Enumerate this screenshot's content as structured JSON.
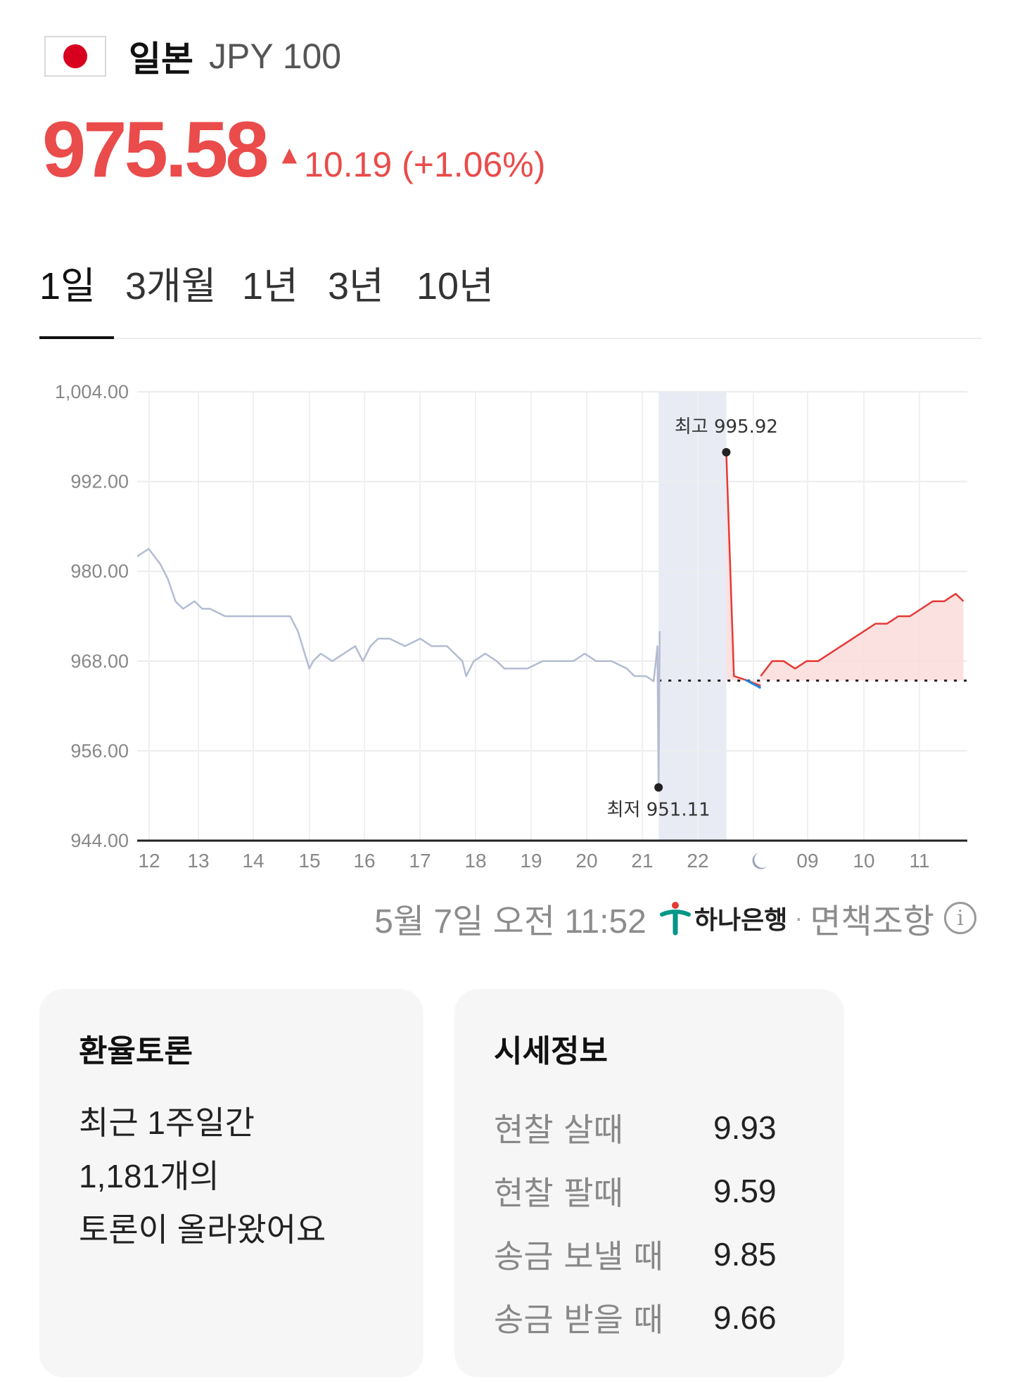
{
  "header": {
    "country": "일본",
    "code": "JPY 100",
    "flag_icon": "japan-flag-icon"
  },
  "quote": {
    "price": "975.58",
    "direction": "up",
    "change": "10.19 (+1.06%)",
    "color": "#ea4b4b"
  },
  "tabs": [
    {
      "label": "1일",
      "active": true
    },
    {
      "label": "3개월",
      "active": false
    },
    {
      "label": "1년",
      "active": false
    },
    {
      "label": "3년",
      "active": false
    },
    {
      "label": "10년",
      "active": false
    }
  ],
  "chart_data": {
    "type": "line",
    "y_ticks": [
      "1,004.00",
      "992.00",
      "980.00",
      "968.00",
      "956.00",
      "944.00"
    ],
    "ylim": [
      944,
      1004
    ],
    "x_ticks": [
      "12",
      "13",
      "14",
      "15",
      "16",
      "17",
      "18",
      "19",
      "20",
      "21",
      "22",
      "",
      "09",
      "10",
      "11"
    ],
    "night_icon": "moon-icon",
    "reference_value": 965.39,
    "high_label": "최고 995.92",
    "high_value": 995.92,
    "low_label": "최저 951.11",
    "low_value": 951.11,
    "series": [
      {
        "values": [
          [
            0,
            982
          ],
          [
            0.3,
            983
          ],
          [
            0.6,
            981
          ],
          [
            0.8,
            979
          ],
          [
            1.0,
            976
          ],
          [
            1.2,
            975
          ],
          [
            1.5,
            976
          ],
          [
            1.7,
            975
          ],
          [
            1.9,
            975
          ],
          [
            2.3,
            974
          ],
          [
            2.6,
            974
          ],
          [
            2.9,
            974
          ],
          [
            3.2,
            974
          ],
          [
            3.5,
            974
          ],
          [
            3.8,
            974
          ],
          [
            4.0,
            974
          ],
          [
            4.2,
            972
          ],
          [
            4.5,
            967
          ],
          [
            4.6,
            968
          ],
          [
            4.8,
            969
          ],
          [
            5.1,
            968
          ],
          [
            5.4,
            969
          ],
          [
            5.7,
            970
          ],
          [
            5.9,
            968
          ],
          [
            6.1,
            970
          ],
          [
            6.3,
            971
          ],
          [
            6.6,
            971
          ],
          [
            7.0,
            970
          ],
          [
            7.4,
            971
          ],
          [
            7.7,
            970
          ],
          [
            8.1,
            970
          ],
          [
            8.5,
            968
          ],
          [
            8.6,
            966
          ],
          [
            8.8,
            968
          ],
          [
            9.1,
            969
          ],
          [
            9.4,
            968
          ],
          [
            9.6,
            967
          ],
          [
            9.8,
            967
          ],
          [
            10.2,
            967
          ],
          [
            10.6,
            968
          ],
          [
            11.0,
            968
          ],
          [
            11.4,
            968
          ],
          [
            11.7,
            969
          ],
          [
            12.0,
            968
          ],
          [
            12.4,
            968
          ],
          [
            12.8,
            967
          ],
          [
            13.0,
            966
          ],
          [
            13.3,
            966
          ],
          [
            13.5,
            965.3
          ],
          [
            13.56,
            968
          ],
          [
            13.6,
            970
          ],
          [
            13.63,
            951.11
          ],
          [
            13.66,
            972
          ]
        ],
        "color": "#b4bcd2"
      },
      {
        "values": [
          [
            15.4,
            995.92
          ],
          [
            15.6,
            966
          ],
          [
            15.9,
            965.5
          ],
          [
            16.1,
            965.1
          ],
          [
            16.3,
            964.7
          ]
        ],
        "color": "#e53935"
      },
      {
        "values": [
          [
            16.3,
            966
          ],
          [
            16.6,
            968
          ],
          [
            16.9,
            968
          ],
          [
            17.2,
            967
          ],
          [
            17.5,
            968
          ],
          [
            17.8,
            968
          ],
          [
            18.1,
            969
          ],
          [
            18.4,
            970
          ],
          [
            18.7,
            971
          ],
          [
            19.0,
            972
          ],
          [
            19.3,
            973
          ],
          [
            19.6,
            973
          ],
          [
            19.9,
            974
          ],
          [
            20.2,
            974
          ],
          [
            20.5,
            975
          ],
          [
            20.8,
            976
          ],
          [
            21.1,
            976
          ],
          [
            21.4,
            977
          ],
          [
            21.6,
            976
          ]
        ],
        "color": "#e53935"
      }
    ],
    "grid": true
  },
  "footer": {
    "timestamp": "5월 7일 오전 11:52",
    "bank_name": "하나은행",
    "bank_logo_icon": "hana-bank-logo-icon",
    "separator": "·",
    "disclaimer": "면책조항",
    "info_icon": "info-icon"
  },
  "discussion": {
    "title": "환율토론",
    "lines": [
      "최근 1주일간",
      "1,181개의",
      "토론이 올라왔어요"
    ]
  },
  "price_info": {
    "title": "시세정보",
    "rows": [
      {
        "label": "현찰 살때",
        "value": "9.93"
      },
      {
        "label": "현찰 팔때",
        "value": "9.59"
      },
      {
        "label": "송금 보낼 때",
        "value": "9.85"
      },
      {
        "label": "송금 받을 때",
        "value": "9.66"
      }
    ]
  }
}
